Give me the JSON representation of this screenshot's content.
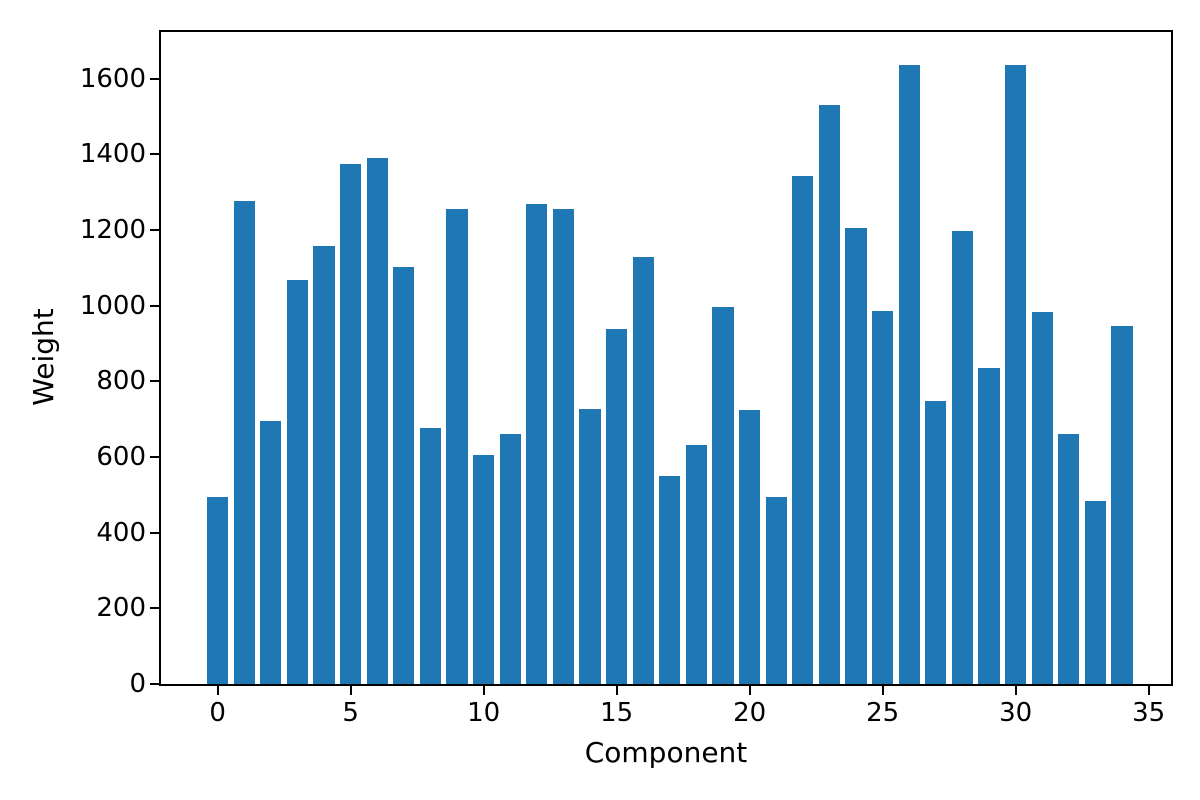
{
  "chart_data": {
    "type": "bar",
    "title": "",
    "xlabel": "Component",
    "ylabel": "Weight",
    "bar_color": "#1f77b4",
    "background_color": "#ffffff",
    "text_color": "#000000",
    "grid": false,
    "legend": null,
    "bar_width": 0.8,
    "categories": [
      0,
      1,
      2,
      3,
      4,
      5,
      6,
      7,
      8,
      9,
      10,
      11,
      12,
      13,
      14,
      15,
      16,
      17,
      18,
      19,
      20,
      21,
      22,
      23,
      24,
      25,
      26,
      27,
      28,
      29,
      30,
      31,
      32,
      33,
      34
    ],
    "values": [
      494,
      1277,
      694,
      1068,
      1157,
      1374,
      1389,
      1102,
      676,
      1255,
      606,
      660,
      1269,
      1255,
      728,
      938,
      1128,
      550,
      633,
      997,
      723,
      494,
      1343,
      1530,
      1206,
      986,
      1637,
      749,
      1196,
      834,
      1637,
      984,
      661,
      484,
      945
    ],
    "xticks": [
      0,
      5,
      10,
      15,
      20,
      25,
      30,
      35
    ],
    "yticks": [
      0,
      200,
      400,
      600,
      800,
      1000,
      1200,
      1400,
      1600
    ],
    "xlim": [
      -2.13,
      35.84
    ],
    "ylim": [
      0,
      1723
    ]
  }
}
